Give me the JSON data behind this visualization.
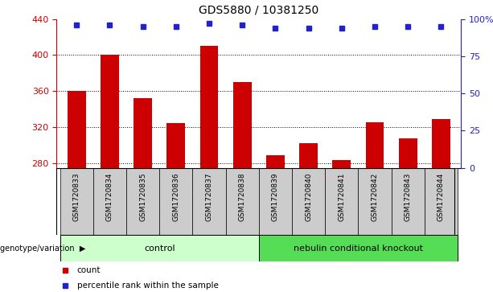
{
  "title": "GDS5880 / 10381250",
  "samples": [
    "GSM1720833",
    "GSM1720834",
    "GSM1720835",
    "GSM1720836",
    "GSM1720837",
    "GSM1720838",
    "GSM1720839",
    "GSM1720840",
    "GSM1720841",
    "GSM1720842",
    "GSM1720843",
    "GSM1720844"
  ],
  "counts": [
    360,
    400,
    352,
    325,
    410,
    370,
    289,
    302,
    284,
    326,
    308,
    329
  ],
  "percentile_ranks": [
    96,
    96,
    95,
    95,
    97,
    96,
    94,
    94,
    94,
    95,
    95,
    95
  ],
  "ylim_left": [
    275,
    440
  ],
  "ylim_right": [
    0,
    100
  ],
  "yticks_left": [
    280,
    320,
    360,
    400,
    440
  ],
  "yticks_right": [
    0,
    25,
    50,
    75,
    100
  ],
  "bar_color": "#cc0000",
  "dot_color": "#2222cc",
  "grid_color": "#000000",
  "bar_width": 0.55,
  "groups": [
    {
      "label": "control",
      "indices": [
        0,
        1,
        2,
        3,
        4,
        5
      ],
      "color": "#ccffcc"
    },
    {
      "label": "nebulin conditional knockout",
      "indices": [
        6,
        7,
        8,
        9,
        10,
        11
      ],
      "color": "#55dd55"
    }
  ],
  "group_label": "genotype/variation",
  "legend_items": [
    {
      "label": "count",
      "color": "#cc0000"
    },
    {
      "label": "percentile rank within the sample",
      "color": "#2222cc"
    }
  ],
  "sample_bg_color": "#cccccc",
  "title_color": "#000000",
  "left_axis_color": "#cc0000",
  "right_axis_color": "#2222cc"
}
